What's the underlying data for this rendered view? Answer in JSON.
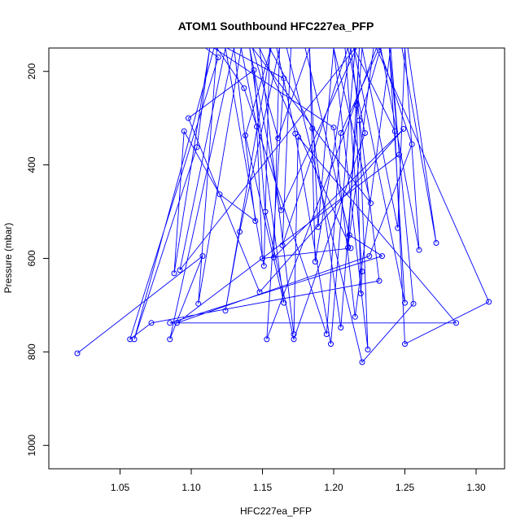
{
  "chart_data": {
    "type": "line",
    "title": "ATOM1 Southbound HFC227ea_PFP",
    "xlabel": "HFC227ea_PFP",
    "ylabel": "Pressure (mbar)",
    "xlim": [
      1.0,
      1.32
    ],
    "ylim": [
      1050,
      150
    ],
    "y_reversed": true,
    "x_ticks": [
      1.05,
      1.1,
      1.15,
      1.2,
      1.25,
      1.3
    ],
    "x_tick_labels": [
      "1.05",
      "1.10",
      "1.15",
      "1.20",
      "1.25",
      "1.30"
    ],
    "y_ticks": [
      200,
      400,
      600,
      800,
      1000
    ],
    "y_tick_labels": [
      "200",
      "400",
      "600",
      "800",
      "1000"
    ],
    "grid": false,
    "legend": "none",
    "series_color": "#0000ff",
    "series": [
      {
        "points": [
          [
            1.02,
            803
          ],
          [
            1.108,
            595
          ],
          [
            1.085,
            773
          ],
          [
            1.13,
            150
          ],
          [
            1.145,
            520
          ],
          [
            1.12,
            463
          ],
          [
            1.095,
            328
          ],
          [
            1.088,
            632
          ],
          [
            1.113,
            150
          ],
          [
            1.104,
            362
          ],
          [
            1.06,
            773
          ],
          [
            1.116,
            150
          ],
          [
            1.2,
            320
          ],
          [
            1.215,
            725
          ],
          [
            1.24,
            150
          ],
          [
            1.246,
            378
          ],
          [
            1.09,
            738
          ],
          [
            1.225,
            595
          ],
          [
            1.255,
            356
          ],
          [
            1.232,
            150
          ],
          [
            1.205,
            332
          ],
          [
            1.195,
            762
          ],
          [
            1.137,
            236
          ],
          [
            1.118,
            150
          ],
          [
            1.105,
            697
          ],
          [
            1.135,
            150
          ],
          [
            1.146,
            318
          ],
          [
            1.15,
            600
          ],
          [
            1.212,
            578
          ],
          [
            1.148,
            150
          ],
          [
            1.172,
            762
          ],
          [
            1.175,
            340
          ],
          [
            1.286,
            738
          ],
          [
            1.085,
            738
          ],
          [
            1.234,
            595
          ],
          [
            1.211,
            550
          ],
          [
            1.18,
            150
          ],
          [
            1.216,
            150
          ],
          [
            1.163,
            497
          ],
          [
            1.141,
            150
          ],
          [
            1.165,
            695
          ],
          [
            1.138,
            337
          ],
          [
            1.156,
            150
          ],
          [
            1.124,
            712
          ],
          [
            1.134,
            543
          ],
          [
            1.162,
            150
          ],
          [
            1.158,
            598
          ],
          [
            1.249,
            323
          ],
          [
            1.148,
            672
          ],
          [
            1.098,
            300
          ],
          [
            1.144,
            197
          ],
          [
            1.152,
            500
          ],
          [
            1.172,
            773
          ],
          [
            1.222,
            332
          ],
          [
            1.21,
            150
          ],
          [
            1.164,
            572
          ],
          [
            1.17,
            150
          ],
          [
            1.12,
            150
          ],
          [
            1.2,
            150
          ],
          [
            1.226,
            482
          ],
          [
            1.143,
            150
          ],
          [
            1.161,
            343
          ],
          [
            1.183,
            150
          ],
          [
            1.16,
            150
          ],
          [
            1.173,
            333
          ],
          [
            1.198,
            783
          ],
          [
            1.215,
            150
          ],
          [
            1.092,
            625
          ],
          [
            1.124,
            150
          ],
          [
            1.151,
            616
          ],
          [
            1.155,
            150
          ],
          [
            1.185,
            322
          ],
          [
            1.205,
            748
          ],
          [
            1.22,
            150
          ],
          [
            1.245,
            535
          ],
          [
            1.25,
            150
          ],
          [
            1.26,
            582
          ],
          [
            1.233,
            150
          ],
          [
            1.218,
            305
          ],
          [
            1.224,
            795
          ],
          [
            1.2,
            150
          ],
          [
            1.189,
            533
          ],
          [
            1.183,
            150
          ],
          [
            1.187,
            607
          ],
          [
            1.212,
            150
          ],
          [
            1.232,
            648
          ],
          [
            1.072,
            738
          ],
          [
            1.057,
            773
          ],
          [
            1.119,
            170
          ],
          [
            1.11,
            150
          ],
          [
            1.125,
            150
          ],
          [
            1.165,
            215
          ],
          [
            1.153,
            773
          ],
          [
            1.23,
            150
          ],
          [
            1.309,
            693
          ],
          [
            1.25,
            783
          ],
          [
            1.243,
            328
          ],
          [
            1.214,
            150
          ],
          [
            1.25,
            695
          ],
          [
            1.239,
            150
          ],
          [
            1.256,
            697
          ],
          [
            1.22,
            822
          ],
          [
            1.167,
            150
          ],
          [
            1.208,
            150
          ],
          [
            1.22,
            628
          ],
          [
            1.219,
            675
          ],
          [
            1.216,
            272
          ],
          [
            1.218,
            150
          ],
          [
            1.21,
            577
          ],
          [
            1.228,
            150
          ],
          [
            1.248,
            150
          ],
          [
            1.272,
            567
          ],
          [
            1.252,
            150
          ],
          [
            1.197,
            150
          ],
          [
            1.14,
            150
          ]
        ]
      }
    ]
  }
}
